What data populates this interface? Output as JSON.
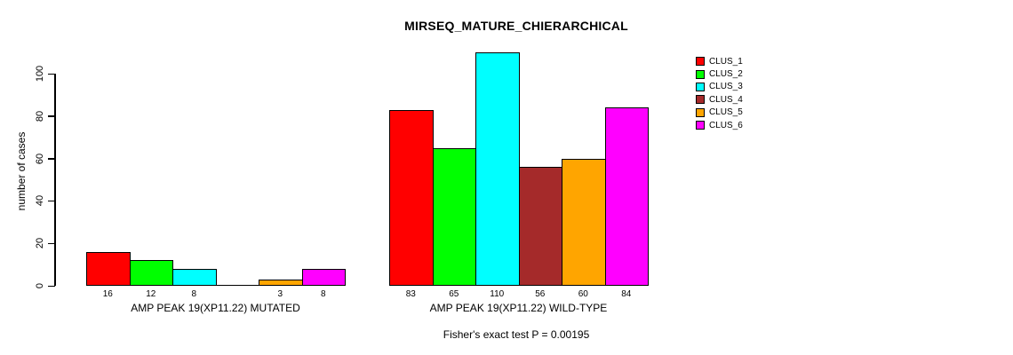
{
  "chart_data": {
    "type": "bar",
    "title": "MIRSEQ_MATURE_CHIERARCHICAL",
    "ylabel": "number of cases",
    "xlabel": "",
    "yticks": [
      0,
      20,
      40,
      60,
      80,
      100
    ],
    "ylim": [
      0,
      110
    ],
    "grid": false,
    "legend_position": "right",
    "clusters": [
      {
        "name": "CLUS_1",
        "color": "#ff0000"
      },
      {
        "name": "CLUS_2",
        "color": "#00ff00"
      },
      {
        "name": "CLUS_3",
        "color": "#00ffff"
      },
      {
        "name": "CLUS_4",
        "color": "#a52a2a"
      },
      {
        "name": "CLUS_5",
        "color": "#ffa500"
      },
      {
        "name": "CLUS_6",
        "color": "#ff00ff"
      }
    ],
    "groups": [
      {
        "label": "AMP PEAK 19(XP11.22) MUTATED",
        "values": [
          16,
          12,
          8,
          0,
          3,
          8
        ],
        "bar_labels": [
          "16",
          "12",
          "8",
          "",
          "3",
          "8"
        ]
      },
      {
        "label": "AMP PEAK 19(XP11.22) WILD-TYPE",
        "values": [
          83,
          65,
          110,
          56,
          60,
          84
        ],
        "bar_labels": [
          "83",
          "65",
          "110",
          "56",
          "60",
          "84"
        ]
      }
    ],
    "footnote": "Fisher's exact test P = 0.00195"
  }
}
